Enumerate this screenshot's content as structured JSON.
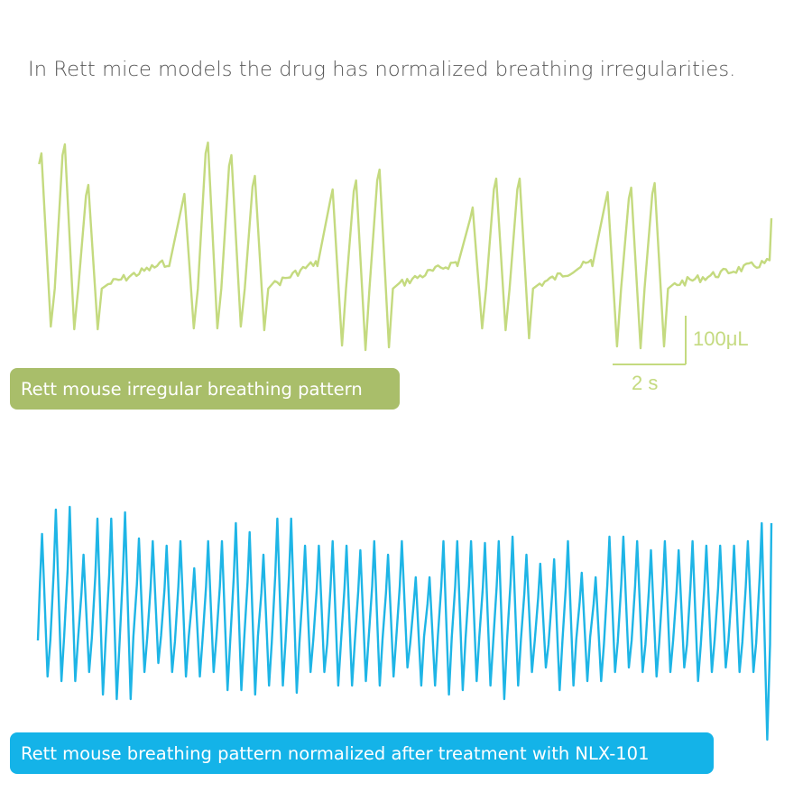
{
  "headline": "In Rett mice models the drug has normalized breathing irregularities.",
  "colors": {
    "green": "#c4da7f",
    "green_pill": "#a9be6a",
    "blue": "#1eb5e6",
    "blue_pill": "#14b3e8"
  },
  "chart_data": [
    {
      "type": "line",
      "name": "irregular",
      "label": "Rett mouse irregular breathing pattern",
      "description": "Clusters of 3-4 large breaths separated by flat apnea segments",
      "bursts": [
        {
          "start": 0.0,
          "peaks": [
            170,
            160,
            205
          ],
          "troughs": [
            362,
            365,
            365
          ]
        },
        {
          "start": 19.5,
          "peaks": [
            215,
            158,
            172,
            195
          ],
          "troughs": [
            364,
            364,
            362,
            366
          ]
        },
        {
          "start": 39.7,
          "peaks": [
            210,
            200,
            188
          ],
          "troughs": [
            383,
            388,
            385
          ]
        },
        {
          "start": 58.8,
          "peaks": [
            230,
            198,
            198
          ],
          "troughs": [
            364,
            366,
            375
          ]
        },
        {
          "start": 77.2,
          "peaks": [
            213,
            208,
            203
          ],
          "troughs": [
            384,
            386,
            384
          ]
        }
      ],
      "scale_bar": {
        "y_label": "100μL",
        "x_label": "2 s"
      }
    },
    {
      "type": "line",
      "name": "normalized",
      "label": "Rett mouse breathing pattern normalized after treatment with NLX-101",
      "description": "Continuous regular breathing oscillation",
      "peaks": [
        592,
        565,
        562,
        615,
        575,
        575,
        568,
        597,
        600,
        605,
        600,
        630,
        600,
        600,
        580,
        590,
        615,
        575,
        575,
        605,
        605,
        600,
        605,
        610,
        600,
        615,
        600,
        640,
        640,
        600,
        600,
        600,
        602,
        600,
        595,
        615,
        625,
        620,
        600,
        635,
        640,
        595,
        595,
        600,
        610,
        600,
        610,
        600,
        605,
        605,
        605,
        600,
        580
      ],
      "troughs": [
        750,
        755,
        755,
        745,
        770,
        775,
        775,
        745,
        735,
        745,
        750,
        750,
        745,
        765,
        765,
        770,
        760,
        760,
        768,
        745,
        745,
        760,
        760,
        755,
        760,
        750,
        740,
        760,
        760,
        770,
        765,
        755,
        760,
        775,
        760,
        745,
        740,
        765,
        760,
        755,
        755,
        745,
        740,
        745,
        750,
        745,
        740,
        755,
        745,
        740,
        745,
        745,
        820
      ]
    }
  ]
}
